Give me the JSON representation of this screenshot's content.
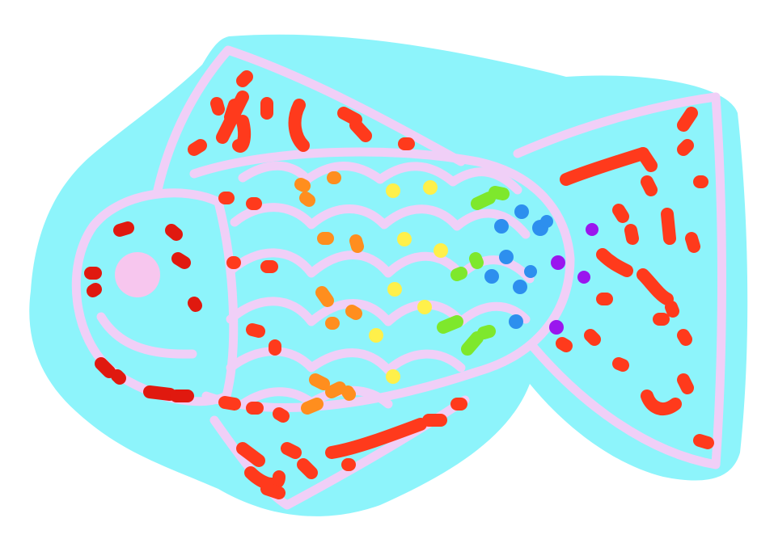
{
  "drawing": {
    "subject": "fish",
    "colors": {
      "background": "#ffffff",
      "water": "#8df4fb",
      "outline": "#f0cff7",
      "eye": "#f7c6ee",
      "red": "#ff3a1c",
      "dark_red": "#e0190f",
      "orange": "#ff8e1e",
      "yellow": "#fff04a",
      "green": "#7ee82c",
      "blue": "#2d8fee",
      "purple": "#9a16ee"
    }
  }
}
